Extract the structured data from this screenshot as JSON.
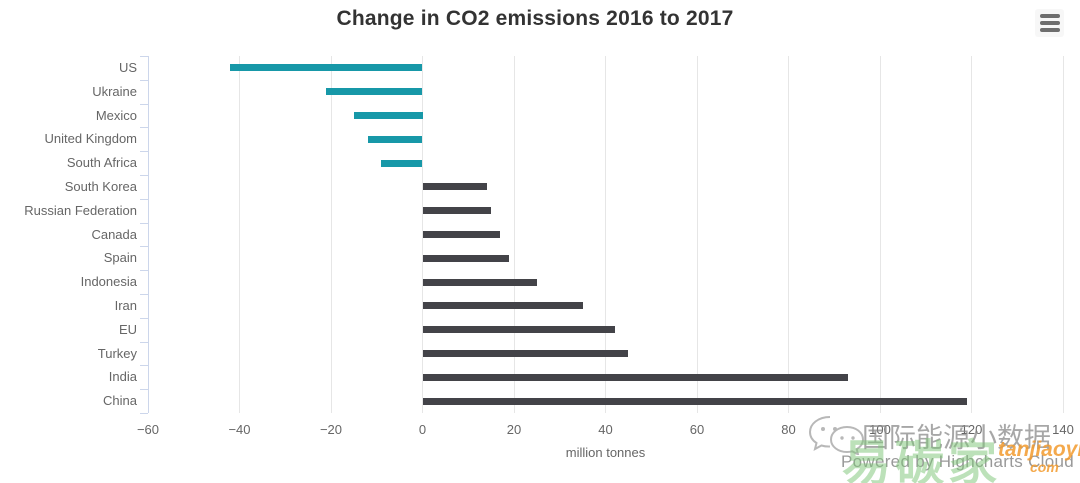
{
  "window": {
    "title": "Change in CO2 emissions 2016 to 2017"
  },
  "toolbar": {
    "menu_icon": "hamburger-icon"
  },
  "chart_data": {
    "type": "bar",
    "orientation": "horizontal",
    "title": "Change in CO2 emissions 2016 to 2017",
    "categories": [
      "US",
      "Ukraine",
      "Mexico",
      "United Kingdom",
      "South Africa",
      "South Korea",
      "Russian Federation",
      "Canada",
      "Spain",
      "Indonesia",
      "Iran",
      "EU",
      "Turkey",
      "India",
      "China"
    ],
    "values": [
      -42,
      -21,
      -15,
      -12,
      -9,
      14,
      15,
      17,
      19,
      25,
      35,
      42,
      45,
      93,
      119
    ],
    "xlabel": "million tonnes",
    "xlim": [
      -60,
      140
    ],
    "x_ticks": [
      -60,
      -40,
      -20,
      0,
      20,
      40,
      60,
      80,
      100,
      120,
      140
    ],
    "x_tick_labels": [
      "−60",
      "−40",
      "−20",
      "0",
      "20",
      "40",
      "60",
      "80",
      "100",
      "120",
      "140"
    ],
    "grid": true,
    "legend": "none",
    "positive_color": "#434348",
    "negative_color": "#1798a8"
  },
  "credits": {
    "label": "Powered by Highcharts Cloud"
  },
  "watermark": {
    "wechat_icon": "wechat-icon",
    "account_name": "国际能源小数据",
    "brand_cn": "易碳家",
    "brand_en": "tanjiaoyi",
    "brand_domain_suffix": "com"
  },
  "colors": {
    "title": "#333333",
    "axis_label": "#666666",
    "grid": "#e6e6e6",
    "axis_line": "#ccd6eb",
    "credits": "#999999",
    "watermark_green": "#7cc576",
    "watermark_orange": "#f39b2d"
  }
}
